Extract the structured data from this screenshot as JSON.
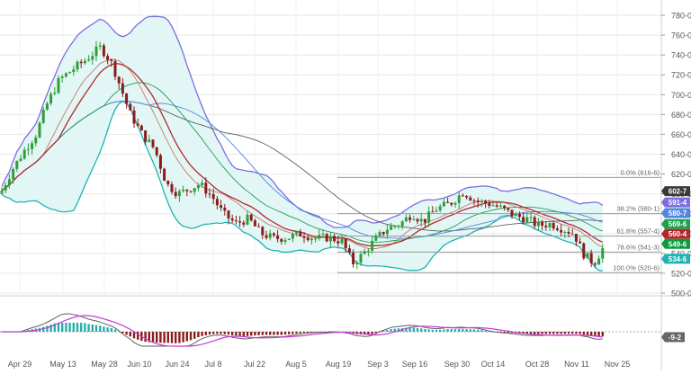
{
  "chart_data": [
    {
      "type": "candlestick",
      "panel": "price",
      "x_labels": [
        "Apr 29",
        "May 13",
        "May 28",
        "Jun 10",
        "Jun 24",
        "Jul 8",
        "Jul 22",
        "Aug 5",
        "Aug 19",
        "Sep 3",
        "Sep 16",
        "Sep 30",
        "Oct 14",
        "Oct 28",
        "Nov 11",
        "Nov 25"
      ],
      "y_ticks": [
        "780-0",
        "760-0",
        "740-0",
        "720-0",
        "700-0",
        "680-0",
        "660-0",
        "640-0",
        "620-0",
        "600-0",
        "580-0",
        "560-0",
        "540-0",
        "520-0",
        "500-0"
      ],
      "ylim": [
        500,
        780
      ],
      "grid": true,
      "overlays": [
        "Bollinger Bands",
        "Moving Averages",
        "Fibonacci Retracement"
      ],
      "fib_levels": [
        {
          "label": "0.0% (616-6)",
          "value": 616.6
        },
        {
          "label": "38.2% (580-1)",
          "value": 580.1
        },
        {
          "label": "61.8% (557-4)",
          "value": 557.4
        },
        {
          "label": "78.6% (541-3)",
          "value": 541.3
        },
        {
          "label": "100.0% (520-6)",
          "value": 520.6
        }
      ],
      "price_badges": [
        {
          "text": "602-7",
          "value": 602.7,
          "color": "#3a3a3a"
        },
        {
          "text": "591-4",
          "value": 591.4,
          "color": "#7a6ee0"
        },
        {
          "text": "580-7",
          "value": 580.7,
          "color": "#4f86e0"
        },
        {
          "text": "569-6",
          "value": 569.6,
          "color": "#1ea050"
        },
        {
          "text": "560-4",
          "value": 560.4,
          "color": "#b3282d"
        },
        {
          "text": "549-6",
          "value": 549.6,
          "color": "#0a9b3c"
        },
        {
          "text": "534-6",
          "value": 534.6,
          "color": "#1fb3b3"
        }
      ],
      "candles_approx": [
        {
          "date": "Apr 29",
          "value": 605
        },
        {
          "date": "May 13",
          "value": 700
        },
        {
          "date": "May 28",
          "value": 745
        },
        {
          "date": "Jun 10",
          "value": 660
        },
        {
          "date": "Jun 24",
          "value": 612
        },
        {
          "date": "Jul 8",
          "value": 590
        },
        {
          "date": "Jul 22",
          "value": 560
        },
        {
          "date": "Aug 5",
          "value": 552
        },
        {
          "date": "Aug 19",
          "value": 530
        },
        {
          "date": "Sep 3",
          "value": 565
        },
        {
          "date": "Sep 16",
          "value": 580
        },
        {
          "date": "Sep 30",
          "value": 600
        },
        {
          "date": "Oct 14",
          "value": 578
        },
        {
          "date": "Oct 28",
          "value": 565
        },
        {
          "date": "Nov 11",
          "value": 532
        },
        {
          "date": "Nov 18",
          "value": 549.6
        }
      ]
    },
    {
      "type": "histogram",
      "panel": "macd",
      "last_value_badge": "-9-2",
      "zero_line": true
    }
  ]
}
